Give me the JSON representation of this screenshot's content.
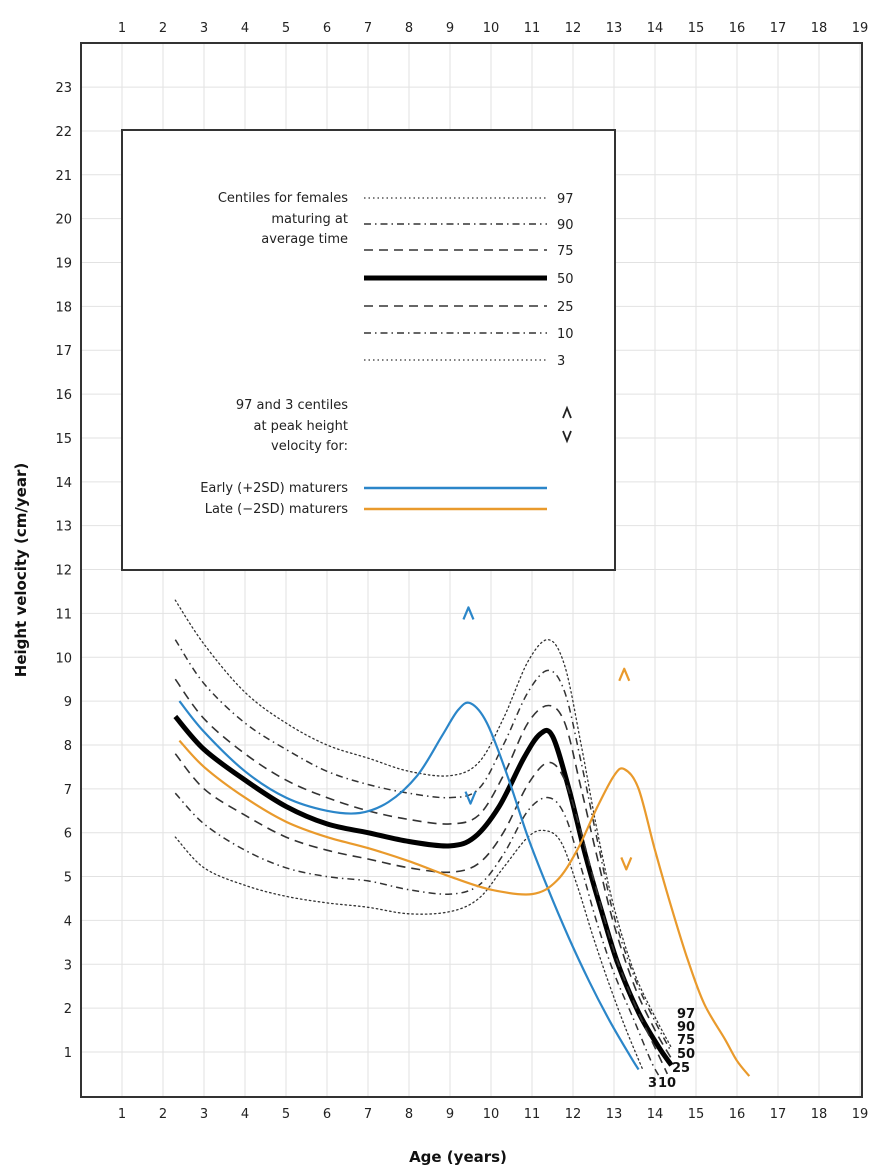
{
  "chart_data": {
    "type": "line",
    "title": "",
    "xlabel": "Age (years)",
    "ylabel": "Height velocity (cm/year)",
    "xlim": [
      0,
      19
    ],
    "ylim": [
      0,
      24
    ],
    "x_ticks": [
      "1",
      "2",
      "3",
      "4",
      "5",
      "6",
      "7",
      "8",
      "9",
      "10",
      "11",
      "12",
      "13",
      "14",
      "15",
      "16",
      "17",
      "18",
      "19"
    ],
    "y_ticks": [
      "1",
      "2",
      "3",
      "4",
      "5",
      "6",
      "7",
      "8",
      "9",
      "10",
      "11",
      "12",
      "13",
      "14",
      "15",
      "16",
      "17",
      "18",
      "19",
      "20",
      "21",
      "22",
      "23"
    ],
    "grid": true,
    "legend_placement": "top-left",
    "legend": {
      "centiles_heading": [
        "Centiles for females",
        "maturing at",
        "average time"
      ],
      "centile_entries": [
        {
          "label": "97",
          "style": "dotted"
        },
        {
          "label": "90",
          "style": "dash-dot"
        },
        {
          "label": "75",
          "style": "dashed"
        },
        {
          "label": "50",
          "style": "solid-bold"
        },
        {
          "label": "25",
          "style": "dashed"
        },
        {
          "label": "10",
          "style": "dash-dot"
        },
        {
          "label": "3",
          "style": "dotted"
        }
      ],
      "phv_heading": [
        "97 and 3 centiles",
        "at peak height",
        "velocity for:"
      ],
      "phv_symbols": {
        "upper": "^",
        "lower": "v"
      },
      "maturer_entries": [
        {
          "label": "Early (+2SD) maturers",
          "color": "#2b86c9"
        },
        {
          "label": "Late (−2SD) maturers",
          "color": "#e99a2c"
        }
      ]
    },
    "series": [
      {
        "name": "97",
        "style": "dotted",
        "color": "#333333",
        "points": [
          [
            2.3,
            11.3
          ],
          [
            3,
            10.3
          ],
          [
            4,
            9.2
          ],
          [
            5,
            8.5
          ],
          [
            6,
            8.0
          ],
          [
            7,
            7.7
          ],
          [
            8,
            7.4
          ],
          [
            9,
            7.3
          ],
          [
            9.7,
            7.6
          ],
          [
            10.3,
            8.6
          ],
          [
            10.9,
            9.9
          ],
          [
            11.4,
            10.4
          ],
          [
            11.8,
            9.8
          ],
          [
            12.2,
            8.0
          ],
          [
            12.6,
            6.0
          ],
          [
            13,
            4.3
          ],
          [
            13.5,
            2.8
          ],
          [
            14,
            1.8
          ],
          [
            14.4,
            1.1
          ]
        ]
      },
      {
        "name": "90",
        "style": "dash-dot",
        "color": "#333333",
        "points": [
          [
            2.3,
            10.4
          ],
          [
            3,
            9.4
          ],
          [
            4,
            8.5
          ],
          [
            5,
            7.9
          ],
          [
            6,
            7.4
          ],
          [
            7,
            7.1
          ],
          [
            8,
            6.9
          ],
          [
            9,
            6.8
          ],
          [
            9.7,
            7.0
          ],
          [
            10.3,
            8.0
          ],
          [
            10.9,
            9.2
          ],
          [
            11.4,
            9.7
          ],
          [
            11.8,
            9.2
          ],
          [
            12.2,
            7.6
          ],
          [
            12.6,
            5.8
          ],
          [
            13,
            4.1
          ],
          [
            13.5,
            2.7
          ],
          [
            14,
            1.7
          ],
          [
            14.4,
            1.0
          ]
        ]
      },
      {
        "name": "75",
        "style": "dashed",
        "color": "#333333",
        "points": [
          [
            2.3,
            9.5
          ],
          [
            3,
            8.6
          ],
          [
            4,
            7.8
          ],
          [
            5,
            7.2
          ],
          [
            6,
            6.8
          ],
          [
            7,
            6.5
          ],
          [
            8,
            6.3
          ],
          [
            9,
            6.2
          ],
          [
            9.7,
            6.4
          ],
          [
            10.3,
            7.3
          ],
          [
            10.9,
            8.5
          ],
          [
            11.4,
            8.9
          ],
          [
            11.8,
            8.5
          ],
          [
            12.2,
            7.0
          ],
          [
            12.6,
            5.4
          ],
          [
            13,
            3.9
          ],
          [
            13.5,
            2.5
          ],
          [
            14,
            1.5
          ],
          [
            14.4,
            0.85
          ]
        ]
      },
      {
        "name": "50",
        "style": "solid-bold",
        "color": "#000000",
        "points": [
          [
            2.3,
            8.65
          ],
          [
            3,
            7.9
          ],
          [
            4,
            7.2
          ],
          [
            5,
            6.6
          ],
          [
            6,
            6.2
          ],
          [
            7,
            6.0
          ],
          [
            8,
            5.8
          ],
          [
            9,
            5.7
          ],
          [
            9.6,
            5.9
          ],
          [
            10.2,
            6.6
          ],
          [
            10.8,
            7.7
          ],
          [
            11.2,
            8.25
          ],
          [
            11.5,
            8.2
          ],
          [
            11.9,
            7.0
          ],
          [
            12.3,
            5.5
          ],
          [
            12.7,
            4.2
          ],
          [
            13.1,
            3.0
          ],
          [
            13.6,
            1.9
          ],
          [
            14.1,
            1.1
          ],
          [
            14.4,
            0.7
          ]
        ]
      },
      {
        "name": "25",
        "style": "dashed",
        "color": "#333333",
        "points": [
          [
            2.3,
            7.8
          ],
          [
            3,
            7.0
          ],
          [
            4,
            6.4
          ],
          [
            5,
            5.9
          ],
          [
            6,
            5.6
          ],
          [
            7,
            5.4
          ],
          [
            8,
            5.2
          ],
          [
            9,
            5.1
          ],
          [
            9.7,
            5.3
          ],
          [
            10.3,
            6.0
          ],
          [
            10.9,
            7.1
          ],
          [
            11.4,
            7.6
          ],
          [
            11.8,
            7.2
          ],
          [
            12.2,
            6.0
          ],
          [
            12.6,
            4.6
          ],
          [
            13,
            3.3
          ],
          [
            13.5,
            2.1
          ],
          [
            14,
            1.1
          ],
          [
            14.3,
            0.5
          ]
        ]
      },
      {
        "name": "10",
        "style": "dash-dot",
        "color": "#333333",
        "points": [
          [
            2.3,
            6.9
          ],
          [
            3,
            6.2
          ],
          [
            4,
            5.6
          ],
          [
            5,
            5.2
          ],
          [
            6,
            5.0
          ],
          [
            7,
            4.9
          ],
          [
            8,
            4.7
          ],
          [
            9,
            4.6
          ],
          [
            9.7,
            4.8
          ],
          [
            10.3,
            5.5
          ],
          [
            10.9,
            6.5
          ],
          [
            11.4,
            6.8
          ],
          [
            11.8,
            6.4
          ],
          [
            12.2,
            5.2
          ],
          [
            12.6,
            3.9
          ],
          [
            13,
            2.8
          ],
          [
            13.5,
            1.7
          ],
          [
            13.9,
            0.8
          ],
          [
            14.1,
            0.45
          ]
        ]
      },
      {
        "name": "3",
        "style": "dotted",
        "color": "#333333",
        "points": [
          [
            2.3,
            5.9
          ],
          [
            3,
            5.2
          ],
          [
            4,
            4.8
          ],
          [
            5,
            4.55
          ],
          [
            6,
            4.4
          ],
          [
            7,
            4.3
          ],
          [
            8,
            4.15
          ],
          [
            9,
            4.2
          ],
          [
            9.7,
            4.5
          ],
          [
            10.3,
            5.2
          ],
          [
            10.9,
            5.9
          ],
          [
            11.3,
            6.05
          ],
          [
            11.7,
            5.8
          ],
          [
            12.1,
            4.8
          ],
          [
            12.5,
            3.6
          ],
          [
            12.9,
            2.5
          ],
          [
            13.3,
            1.5
          ],
          [
            13.7,
            0.6
          ]
        ]
      },
      {
        "name": "Early (+2SD) maturers",
        "style": "solid",
        "color": "#2b86c9",
        "points": [
          [
            2.4,
            9.0
          ],
          [
            3,
            8.3
          ],
          [
            4,
            7.4
          ],
          [
            5,
            6.8
          ],
          [
            6,
            6.5
          ],
          [
            6.8,
            6.45
          ],
          [
            7.5,
            6.7
          ],
          [
            8.2,
            7.3
          ],
          [
            8.8,
            8.2
          ],
          [
            9.2,
            8.8
          ],
          [
            9.5,
            8.95
          ],
          [
            9.9,
            8.5
          ],
          [
            10.4,
            7.3
          ],
          [
            10.9,
            5.9
          ],
          [
            11.4,
            4.7
          ],
          [
            11.9,
            3.6
          ],
          [
            12.4,
            2.6
          ],
          [
            12.9,
            1.7
          ],
          [
            13.4,
            0.9
          ],
          [
            13.6,
            0.6
          ]
        ]
      },
      {
        "name": "Late (−2SD) maturers",
        "style": "solid",
        "color": "#e99a2c",
        "points": [
          [
            2.4,
            8.1
          ],
          [
            3,
            7.5
          ],
          [
            4,
            6.8
          ],
          [
            5,
            6.25
          ],
          [
            6,
            5.9
          ],
          [
            7,
            5.65
          ],
          [
            8,
            5.35
          ],
          [
            9,
            5.0
          ],
          [
            10,
            4.7
          ],
          [
            11,
            4.6
          ],
          [
            11.6,
            4.9
          ],
          [
            12.1,
            5.6
          ],
          [
            12.6,
            6.6
          ],
          [
            13,
            7.3
          ],
          [
            13.25,
            7.45
          ],
          [
            13.6,
            7.0
          ],
          [
            14,
            5.6
          ],
          [
            14.4,
            4.3
          ],
          [
            14.8,
            3.1
          ],
          [
            15.2,
            2.1
          ],
          [
            15.7,
            1.3
          ],
          [
            16,
            0.8
          ],
          [
            16.3,
            0.45
          ]
        ]
      }
    ],
    "phv_markers": [
      {
        "group": "early",
        "type": "upper",
        "x": 9.45,
        "y": 11.0,
        "color": "#2b86c9"
      },
      {
        "group": "early",
        "type": "lower",
        "x": 9.5,
        "y": 6.8,
        "color": "#2b86c9"
      },
      {
        "group": "late",
        "type": "upper",
        "x": 13.25,
        "y": 9.6,
        "color": "#e99a2c"
      },
      {
        "group": "late",
        "type": "lower",
        "x": 13.3,
        "y": 5.3,
        "color": "#e99a2c"
      }
    ],
    "end_labels": [
      "97",
      "90",
      "75",
      "50",
      "25",
      "3",
      "10"
    ]
  }
}
